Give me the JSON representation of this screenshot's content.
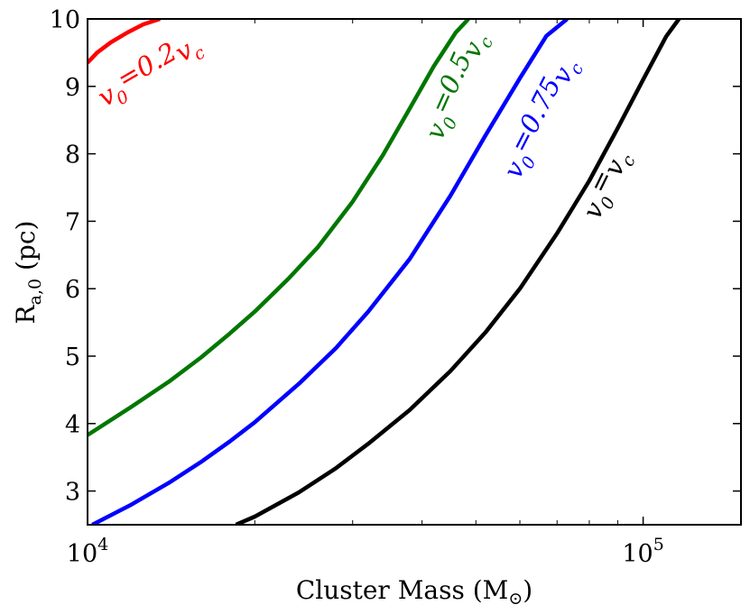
{
  "chart_data": {
    "type": "line",
    "title": "",
    "xlabel": "Cluster Mass (M",
    "xlabel_sub": "⊙",
    "xlabel_close": ")",
    "ylabel": "R",
    "ylabel_sub": "a,0",
    "ylabel_unit": " (pc)",
    "xscale": "log",
    "xlim": [
      10000,
      150000
    ],
    "ylim": [
      2.5,
      10
    ],
    "x_ticks": [
      {
        "value": 10000,
        "base": "10",
        "exp": "4"
      },
      {
        "value": 100000,
        "base": "10",
        "exp": "5"
      }
    ],
    "y_ticks": [
      {
        "value": 3,
        "label": "3"
      },
      {
        "value": 4,
        "label": "4"
      },
      {
        "value": 5,
        "label": "5"
      },
      {
        "value": 6,
        "label": "6"
      },
      {
        "value": 7,
        "label": "7"
      },
      {
        "value": 8,
        "label": "8"
      },
      {
        "value": 9,
        "label": "9"
      },
      {
        "value": 10,
        "label": "10"
      }
    ],
    "series": [
      {
        "name": "v0=0.2vc",
        "color": "#ff0000",
        "label": {
          "var": "v",
          "sub": "0",
          "mid": "=0.2",
          "var2": "v",
          "sub2": "c",
          "rotation": -30
        },
        "points": [
          [
            10000,
            9.35
          ],
          [
            10400,
            9.5
          ],
          [
            11000,
            9.65
          ],
          [
            11800,
            9.8
          ],
          [
            12600,
            9.92
          ],
          [
            13500,
            10.0
          ]
        ]
      },
      {
        "name": "v0=0.5vc",
        "color": "#007700",
        "label": {
          "var": "v",
          "sub": "0",
          "mid": "=0.5",
          "var2": "v",
          "sub2": "c",
          "rotation": -66
        },
        "points": [
          [
            10000,
            3.83
          ],
          [
            12000,
            4.25
          ],
          [
            14000,
            4.62
          ],
          [
            16000,
            4.98
          ],
          [
            18000,
            5.33
          ],
          [
            20000,
            5.66
          ],
          [
            23000,
            6.15
          ],
          [
            26000,
            6.62
          ],
          [
            30000,
            7.29
          ],
          [
            34000,
            7.98
          ],
          [
            38000,
            8.67
          ],
          [
            42000,
            9.3
          ],
          [
            46000,
            9.8
          ],
          [
            48500,
            10.0
          ]
        ]
      },
      {
        "name": "v0=0.75vc",
        "color": "#0000ff",
        "label": {
          "var": "v",
          "sub": "0",
          "mid": "=0.75",
          "var2": "v",
          "sub2": "c",
          "rotation": -63
        },
        "points": [
          [
            10200,
            2.5
          ],
          [
            12000,
            2.8
          ],
          [
            14000,
            3.12
          ],
          [
            16000,
            3.43
          ],
          [
            18000,
            3.73
          ],
          [
            20000,
            4.02
          ],
          [
            24000,
            4.59
          ],
          [
            28000,
            5.12
          ],
          [
            32000,
            5.66
          ],
          [
            38000,
            6.44
          ],
          [
            45000,
            7.38
          ],
          [
            52000,
            8.27
          ],
          [
            60000,
            9.12
          ],
          [
            67000,
            9.75
          ],
          [
            73000,
            10.0
          ]
        ]
      },
      {
        "name": "v0=vc",
        "color": "#000000",
        "label": {
          "var": "v",
          "sub": "0",
          "mid": "=",
          "var2": "v",
          "sub2": "c",
          "rotation": -64
        },
        "points": [
          [
            18500,
            2.5
          ],
          [
            20000,
            2.62
          ],
          [
            24000,
            2.98
          ],
          [
            28000,
            3.34
          ],
          [
            32000,
            3.7
          ],
          [
            38000,
            4.2
          ],
          [
            45000,
            4.78
          ],
          [
            52000,
            5.35
          ],
          [
            60000,
            6.0
          ],
          [
            70000,
            6.82
          ],
          [
            80000,
            7.6
          ],
          [
            90000,
            8.38
          ],
          [
            100000,
            9.1
          ],
          [
            110000,
            9.74
          ],
          [
            116000,
            10.0
          ]
        ]
      }
    ],
    "grid": false,
    "legend": "none (inline labels)"
  }
}
